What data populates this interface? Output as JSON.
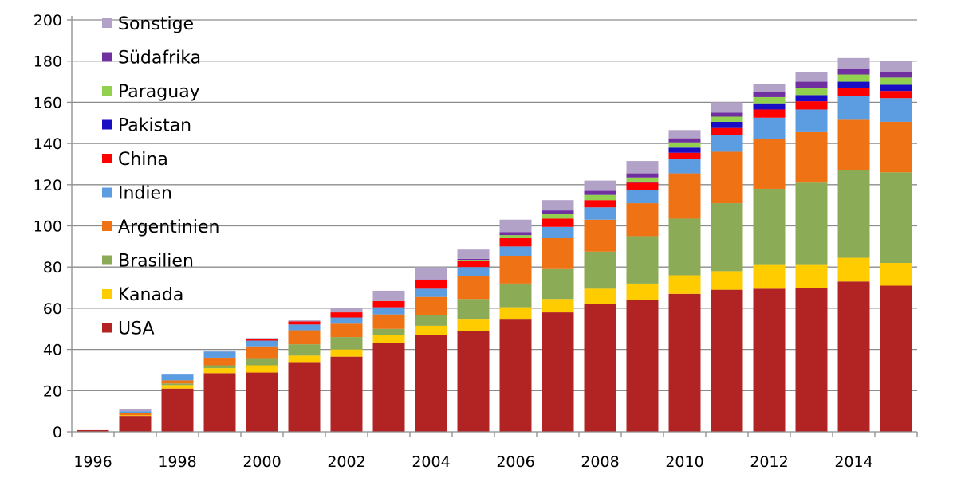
{
  "chart_data": {
    "type": "bar",
    "stacked": true,
    "title": "",
    "xlabel": "",
    "ylabel": "",
    "ylim": [
      0,
      200
    ],
    "y_ticks": [
      0,
      20,
      40,
      60,
      80,
      100,
      120,
      140,
      160,
      180,
      200
    ],
    "x_tick_labels": [
      "1996",
      "1998",
      "2000",
      "2002",
      "2004",
      "2006",
      "2008",
      "2010",
      "2012",
      "2014"
    ],
    "grid": "horizontal",
    "legend_position": "top-left",
    "categories": [
      "1996",
      "1997",
      "1998",
      "1999",
      "2000",
      "2001",
      "2002",
      "2003",
      "2004",
      "2005",
      "2006",
      "2007",
      "2008",
      "2009",
      "2010",
      "2011",
      "2012",
      "2013",
      "2014",
      "2015"
    ],
    "series": [
      {
        "name": "USA",
        "color": "#b22424",
        "values": [
          0.8,
          7.7,
          21,
          28.5,
          28.8,
          33.5,
          36.5,
          43,
          47,
          49,
          54.5,
          58,
          62,
          64,
          67,
          69,
          69.5,
          70,
          73,
          71
        ]
      },
      {
        "name": "Kanada",
        "color": "#ffcc00",
        "values": [
          0,
          0.3,
          1.7,
          2.4,
          3.5,
          3.5,
          3.5,
          4,
          4.5,
          5.5,
          6,
          6.5,
          7.5,
          8,
          9,
          9,
          11.5,
          11,
          11.5,
          11
        ]
      },
      {
        "name": "Brasilien",
        "color": "#8cab56",
        "values": [
          0,
          0,
          0.8,
          1.4,
          3.5,
          5.5,
          6,
          3,
          5,
          10,
          11.5,
          14.5,
          18,
          23,
          27.5,
          33,
          37,
          40,
          42.5,
          44
        ]
      },
      {
        "name": "Argentinien",
        "color": "#ef7314",
        "values": [
          0,
          1,
          1.5,
          3.7,
          5.7,
          6.8,
          6.5,
          7,
          9,
          11,
          13.5,
          15,
          15.5,
          16,
          22,
          25,
          24,
          24.5,
          24.5,
          24.5
        ]
      },
      {
        "name": "Indien",
        "color": "#5b9de0",
        "values": [
          0,
          1,
          2.8,
          3,
          2.8,
          2.8,
          3,
          3.5,
          4,
          4.5,
          4.5,
          5.5,
          6,
          6.5,
          7,
          8,
          10.5,
          11,
          11.5,
          11.5
        ]
      },
      {
        "name": "China",
        "color": "#ff0000",
        "values": [
          0,
          0,
          0,
          0,
          0.7,
          1.5,
          2.5,
          3,
          4,
          3,
          4,
          4,
          3.5,
          3.5,
          3,
          3.5,
          4,
          4,
          4,
          3.5
        ]
      },
      {
        "name": "Pakistan",
        "color": "#1a0ec4",
        "values": [
          0,
          0,
          0,
          0,
          0,
          0,
          0,
          0,
          0,
          0,
          0,
          0,
          0,
          0.5,
          2.5,
          3,
          3,
          3,
          3,
          3
        ]
      },
      {
        "name": "Paraguay",
        "color": "#92d050",
        "values": [
          0,
          0,
          0,
          0,
          0,
          0,
          0,
          0,
          0,
          0.5,
          1.5,
          2.5,
          2.5,
          2,
          2.5,
          2.5,
          3,
          3.5,
          3.5,
          3.5
        ]
      },
      {
        "name": "Südafrika",
        "color": "#7030a0",
        "values": [
          0,
          0,
          0,
          0,
          0,
          0,
          0,
          0,
          0.5,
          0.5,
          1.5,
          1.5,
          2,
          2,
          2,
          2,
          2.5,
          3,
          3,
          2.5
        ]
      },
      {
        "name": "Sonstige",
        "color": "#b3a2c7",
        "values": [
          0,
          1,
          0,
          0.5,
          0.5,
          0.5,
          2,
          5,
          6,
          4.5,
          6,
          5,
          5,
          6,
          4,
          5,
          4,
          4.5,
          5,
          5.5
        ]
      }
    ]
  }
}
